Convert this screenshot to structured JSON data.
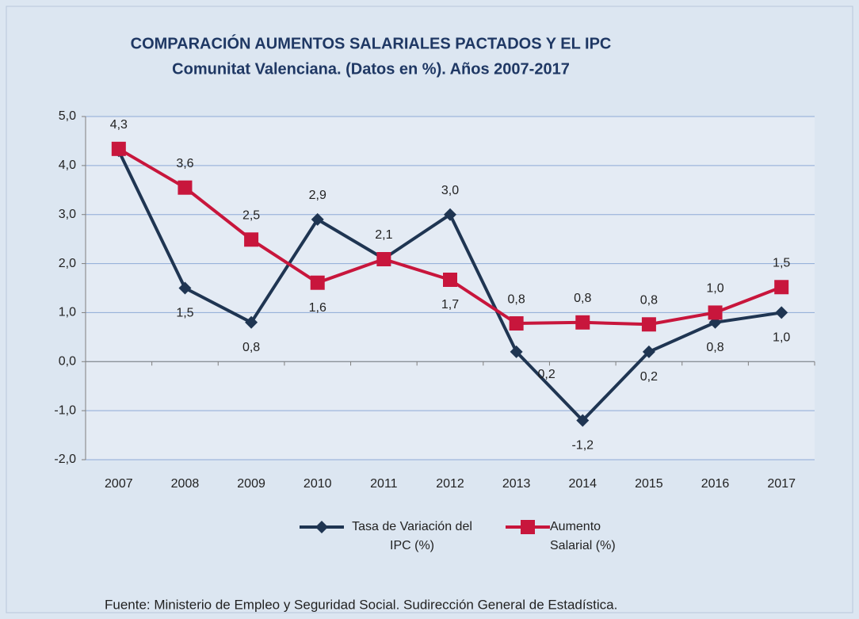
{
  "chart_data": {
    "type": "line",
    "title": "COMPARACIÓN AUMENTOS SALARIALES PACTADOS Y EL IPC",
    "subtitle": "Comunitat Valenciana. (Datos en %). Años 2007-2017",
    "categories": [
      "2007",
      "2008",
      "2009",
      "2010",
      "2011",
      "2012",
      "2013",
      "2014",
      "2015",
      "2016",
      "2017"
    ],
    "series": [
      {
        "name": "Tasa de Variación del IPC (%)",
        "color": "#1f3552",
        "marker": "diamond",
        "values": [
          4.3,
          1.5,
          0.8,
          2.9,
          2.1,
          3.0,
          0.2,
          -1.2,
          0.2,
          0.8,
          1.0
        ],
        "value_labels": [
          null,
          "1,5",
          "0,8",
          "2,9",
          null,
          "3,0",
          "0,2",
          "-1,2",
          "0,2",
          "0,8",
          "1,0"
        ]
      },
      {
        "name": "Aumento Salarial (%)",
        "color": "#c8163c",
        "marker": "square",
        "values": [
          4.34,
          3.55,
          2.49,
          1.61,
          2.09,
          1.67,
          0.78,
          0.8,
          0.76,
          1.0,
          1.52
        ],
        "value_labels": [
          "4,3",
          "3,6",
          "2,5",
          "1,6",
          "2,1",
          "1,7",
          "0,8",
          "0,8",
          "0,8",
          "1,0",
          "1,5"
        ]
      }
    ],
    "ylim": [
      -2,
      5
    ],
    "yticks": [
      {
        "value": -2,
        "label": "-2,0"
      },
      {
        "value": -1,
        "label": "-1,0"
      },
      {
        "value": 0,
        "label": "0,0"
      },
      {
        "value": 1,
        "label": "1,0"
      },
      {
        "value": 2,
        "label": "2,0"
      },
      {
        "value": 3,
        "label": "3,0"
      },
      {
        "value": 4,
        "label": "4,0"
      },
      {
        "value": 5,
        "label": "5,0"
      }
    ],
    "grid": true,
    "legend": "bottom",
    "source": "Fuente: Ministerio de Empleo y Seguridad Social. Sudirección General de Estadística."
  }
}
